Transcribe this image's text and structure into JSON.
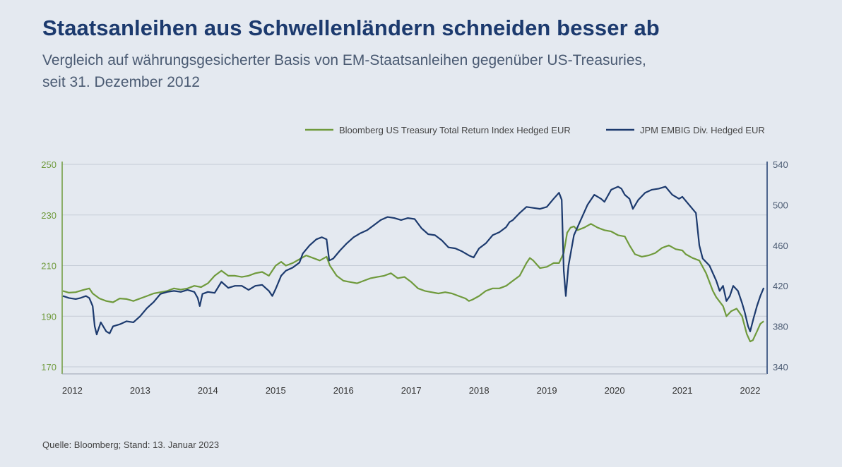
{
  "header": {
    "title": "Staatsanleihen aus Schwellenländern schneiden besser ab",
    "subtitle_line1": "Vergleich auf währungsgesicherter Basis von EM-Staatsanleihen gegenüber US-Treasuries,",
    "subtitle_line2": "seit 31. Dezember 2012"
  },
  "footer": {
    "source": "Quelle: Bloomberg; Stand: 13. Januar 2023"
  },
  "colors": {
    "green": "#6f9a3c",
    "navy": "#1c3a6e",
    "grid": "#c5ccd6",
    "axis_left": "#6f9a3c",
    "axis_right": "#1c3a6e"
  },
  "chart_data": {
    "type": "line",
    "x_axis": {
      "range": [
        2011.85,
        2022.25
      ],
      "ticks": [
        2012,
        2013,
        2014,
        2015,
        2016,
        2017,
        2018,
        2019,
        2020,
        2021,
        2022
      ]
    },
    "y_left": {
      "range": [
        170,
        250
      ],
      "ticks": [
        170,
        190,
        210,
        230,
        250
      ]
    },
    "y_right": {
      "range": [
        340,
        540
      ],
      "ticks": [
        340,
        380,
        420,
        460,
        500,
        540
      ]
    },
    "grid": true,
    "legend": {
      "placement": "top-right"
    },
    "series": [
      {
        "name": "Bloomberg US Treasury Total Return Index Hedged EUR",
        "axis": "left",
        "color": "#6f9a3c",
        "points": [
          [
            2011.86,
            200.0
          ],
          [
            2011.95,
            199.3
          ],
          [
            2012.05,
            199.5
          ],
          [
            2012.15,
            200.3
          ],
          [
            2012.25,
            201.0
          ],
          [
            2012.3,
            199.0
          ],
          [
            2012.4,
            197.0
          ],
          [
            2012.5,
            196.0
          ],
          [
            2012.6,
            195.5
          ],
          [
            2012.7,
            197.0
          ],
          [
            2012.8,
            196.8
          ],
          [
            2012.9,
            196.0
          ],
          [
            2013.0,
            197.0
          ],
          [
            2013.1,
            198.0
          ],
          [
            2013.2,
            199.0
          ],
          [
            2013.3,
            199.5
          ],
          [
            2013.4,
            200.0
          ],
          [
            2013.5,
            201.0
          ],
          [
            2013.6,
            200.5
          ],
          [
            2013.7,
            201.0
          ],
          [
            2013.8,
            202.0
          ],
          [
            2013.9,
            201.5
          ],
          [
            2014.0,
            203.0
          ],
          [
            2014.1,
            206.0
          ],
          [
            2014.2,
            208.0
          ],
          [
            2014.3,
            206.0
          ],
          [
            2014.4,
            206.0
          ],
          [
            2014.5,
            205.5
          ],
          [
            2014.6,
            206.0
          ],
          [
            2014.7,
            207.0
          ],
          [
            2014.8,
            207.5
          ],
          [
            2014.9,
            206.0
          ],
          [
            2015.0,
            210.0
          ],
          [
            2015.08,
            211.5
          ],
          [
            2015.15,
            210.0
          ],
          [
            2015.25,
            211.0
          ],
          [
            2015.35,
            212.5
          ],
          [
            2015.45,
            214.0
          ],
          [
            2015.55,
            213.0
          ],
          [
            2015.65,
            212.0
          ],
          [
            2015.75,
            213.5
          ],
          [
            2015.8,
            210.0
          ],
          [
            2015.9,
            206.0
          ],
          [
            2016.0,
            204.0
          ],
          [
            2016.1,
            203.5
          ],
          [
            2016.2,
            203.0
          ],
          [
            2016.3,
            204.0
          ],
          [
            2016.4,
            205.0
          ],
          [
            2016.5,
            205.5
          ],
          [
            2016.6,
            206.0
          ],
          [
            2016.7,
            207.0
          ],
          [
            2016.8,
            205.0
          ],
          [
            2016.9,
            205.5
          ],
          [
            2017.0,
            203.5
          ],
          [
            2017.1,
            201.0
          ],
          [
            2017.2,
            200.0
          ],
          [
            2017.3,
            199.5
          ],
          [
            2017.4,
            199.0
          ],
          [
            2017.5,
            199.5
          ],
          [
            2017.6,
            199.0
          ],
          [
            2017.7,
            198.0
          ],
          [
            2017.8,
            197.0
          ],
          [
            2017.85,
            196.0
          ],
          [
            2017.9,
            196.5
          ],
          [
            2018.0,
            198.0
          ],
          [
            2018.1,
            200.0
          ],
          [
            2018.2,
            201.0
          ],
          [
            2018.3,
            201.0
          ],
          [
            2018.4,
            202.0
          ],
          [
            2018.5,
            204.0
          ],
          [
            2018.6,
            206.0
          ],
          [
            2018.7,
            211.0
          ],
          [
            2018.75,
            213.0
          ],
          [
            2018.8,
            212.0
          ],
          [
            2018.9,
            209.0
          ],
          [
            2019.0,
            209.5
          ],
          [
            2019.1,
            211.0
          ],
          [
            2019.18,
            211.0
          ],
          [
            2019.25,
            215.0
          ],
          [
            2019.3,
            223.0
          ],
          [
            2019.35,
            225.0
          ],
          [
            2019.4,
            225.5
          ],
          [
            2019.45,
            224.0
          ],
          [
            2019.55,
            225.0
          ],
          [
            2019.65,
            226.5
          ],
          [
            2019.75,
            225.0
          ],
          [
            2019.85,
            224.0
          ],
          [
            2019.95,
            223.5
          ],
          [
            2020.05,
            222.0
          ],
          [
            2020.15,
            221.5
          ],
          [
            2020.22,
            218.0
          ],
          [
            2020.3,
            214.5
          ],
          [
            2020.4,
            213.5
          ],
          [
            2020.5,
            214.0
          ],
          [
            2020.6,
            215.0
          ],
          [
            2020.7,
            217.0
          ],
          [
            2020.8,
            218.0
          ],
          [
            2020.9,
            216.5
          ],
          [
            2021.0,
            216.0
          ],
          [
            2021.05,
            214.5
          ],
          [
            2021.15,
            213.0
          ],
          [
            2021.25,
            212.0
          ],
          [
            2021.35,
            207.0
          ],
          [
            2021.45,
            200.0
          ],
          [
            2021.5,
            197.5
          ],
          [
            2021.6,
            194.0
          ],
          [
            2021.65,
            190.0
          ],
          [
            2021.72,
            192.0
          ],
          [
            2021.8,
            193.0
          ],
          [
            2021.88,
            190.0
          ],
          [
            2021.95,
            183.0
          ],
          [
            2022.0,
            180.0
          ],
          [
            2022.04,
            180.5
          ],
          [
            2022.1,
            184.0
          ],
          [
            2022.15,
            187.0
          ],
          [
            2022.2,
            188.0
          ]
        ]
      },
      {
        "name": "JPM EMBIG Div. Hedged EUR",
        "axis": "right",
        "color": "#1c3a6e",
        "points": [
          [
            2011.86,
            410.0
          ],
          [
            2011.95,
            408.0
          ],
          [
            2012.05,
            407.0
          ],
          [
            2012.12,
            408.0
          ],
          [
            2012.2,
            410.0
          ],
          [
            2012.25,
            408.0
          ],
          [
            2012.3,
            400.0
          ],
          [
            2012.33,
            380.0
          ],
          [
            2012.36,
            372.0
          ],
          [
            2012.42,
            384.0
          ],
          [
            2012.5,
            375.0
          ],
          [
            2012.55,
            373.0
          ],
          [
            2012.6,
            380.0
          ],
          [
            2012.7,
            382.0
          ],
          [
            2012.8,
            385.0
          ],
          [
            2012.9,
            384.0
          ],
          [
            2013.0,
            390.0
          ],
          [
            2013.1,
            398.0
          ],
          [
            2013.2,
            404.0
          ],
          [
            2013.3,
            412.0
          ],
          [
            2013.4,
            414.0
          ],
          [
            2013.5,
            415.0
          ],
          [
            2013.6,
            414.0
          ],
          [
            2013.7,
            416.0
          ],
          [
            2013.8,
            414.0
          ],
          [
            2013.85,
            408.0
          ],
          [
            2013.88,
            400.0
          ],
          [
            2013.92,
            412.0
          ],
          [
            2014.0,
            414.0
          ],
          [
            2014.1,
            413.0
          ],
          [
            2014.2,
            424.0
          ],
          [
            2014.3,
            418.0
          ],
          [
            2014.4,
            420.0
          ],
          [
            2014.5,
            420.0
          ],
          [
            2014.6,
            416.0
          ],
          [
            2014.7,
            420.0
          ],
          [
            2014.8,
            421.0
          ],
          [
            2014.9,
            415.0
          ],
          [
            2014.95,
            410.0
          ],
          [
            2015.0,
            417.0
          ],
          [
            2015.08,
            430.0
          ],
          [
            2015.15,
            435.0
          ],
          [
            2015.25,
            438.0
          ],
          [
            2015.35,
            443.0
          ],
          [
            2015.4,
            452.0
          ],
          [
            2015.5,
            460.0
          ],
          [
            2015.6,
            466.0
          ],
          [
            2015.68,
            468.0
          ],
          [
            2015.75,
            466.0
          ],
          [
            2015.79,
            445.0
          ],
          [
            2015.85,
            447.0
          ],
          [
            2015.95,
            455.0
          ],
          [
            2016.05,
            462.0
          ],
          [
            2016.15,
            468.0
          ],
          [
            2016.25,
            472.0
          ],
          [
            2016.35,
            475.0
          ],
          [
            2016.45,
            480.0
          ],
          [
            2016.55,
            485.0
          ],
          [
            2016.65,
            488.0
          ],
          [
            2016.75,
            487.0
          ],
          [
            2016.85,
            485.0
          ],
          [
            2016.95,
            487.0
          ],
          [
            2017.05,
            486.0
          ],
          [
            2017.15,
            477.0
          ],
          [
            2017.25,
            471.0
          ],
          [
            2017.35,
            470.0
          ],
          [
            2017.45,
            465.0
          ],
          [
            2017.55,
            458.0
          ],
          [
            2017.65,
            457.0
          ],
          [
            2017.75,
            454.0
          ],
          [
            2017.85,
            450.0
          ],
          [
            2017.92,
            448.0
          ],
          [
            2018.0,
            457.0
          ],
          [
            2018.1,
            462.0
          ],
          [
            2018.2,
            470.0
          ],
          [
            2018.3,
            473.0
          ],
          [
            2018.4,
            478.0
          ],
          [
            2018.45,
            483.0
          ],
          [
            2018.5,
            485.0
          ],
          [
            2018.6,
            492.0
          ],
          [
            2018.7,
            498.0
          ],
          [
            2018.8,
            497.0
          ],
          [
            2018.9,
            496.0
          ],
          [
            2019.0,
            498.0
          ],
          [
            2019.1,
            506.0
          ],
          [
            2019.18,
            512.0
          ],
          [
            2019.22,
            505.0
          ],
          [
            2019.25,
            435.0
          ],
          [
            2019.28,
            410.0
          ],
          [
            2019.32,
            440.0
          ],
          [
            2019.4,
            470.0
          ],
          [
            2019.5,
            485.0
          ],
          [
            2019.6,
            500.0
          ],
          [
            2019.7,
            510.0
          ],
          [
            2019.8,
            506.0
          ],
          [
            2019.85,
            503.0
          ],
          [
            2019.95,
            515.0
          ],
          [
            2020.05,
            518.0
          ],
          [
            2020.1,
            516.0
          ],
          [
            2020.15,
            510.0
          ],
          [
            2020.22,
            506.0
          ],
          [
            2020.27,
            496.0
          ],
          [
            2020.35,
            505.0
          ],
          [
            2020.45,
            512.0
          ],
          [
            2020.55,
            515.0
          ],
          [
            2020.65,
            516.0
          ],
          [
            2020.75,
            518.0
          ],
          [
            2020.85,
            510.0
          ],
          [
            2020.95,
            506.0
          ],
          [
            2021.0,
            508.0
          ],
          [
            2021.1,
            500.0
          ],
          [
            2021.2,
            492.0
          ],
          [
            2021.25,
            460.0
          ],
          [
            2021.3,
            447.0
          ],
          [
            2021.4,
            440.0
          ],
          [
            2021.5,
            425.0
          ],
          [
            2021.55,
            415.0
          ],
          [
            2021.6,
            420.0
          ],
          [
            2021.65,
            405.0
          ],
          [
            2021.7,
            410.0
          ],
          [
            2021.75,
            420.0
          ],
          [
            2021.82,
            415.0
          ],
          [
            2021.88,
            403.0
          ],
          [
            2021.92,
            394.0
          ],
          [
            2021.97,
            380.0
          ],
          [
            2022.0,
            375.0
          ],
          [
            2022.05,
            388.0
          ],
          [
            2022.1,
            400.0
          ],
          [
            2022.15,
            410.0
          ],
          [
            2022.2,
            418.0
          ]
        ]
      }
    ]
  }
}
